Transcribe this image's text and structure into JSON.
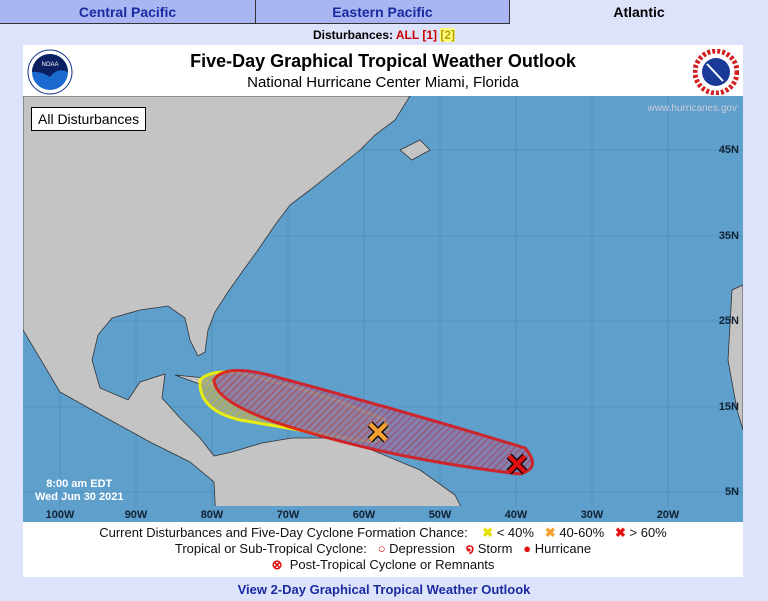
{
  "tabs": [
    {
      "label": "Central Pacific"
    },
    {
      "label": "Eastern Pacific"
    },
    {
      "label": "Atlantic",
      "active": true
    }
  ],
  "disturbances": {
    "label": "Disturbances:",
    "all": "ALL",
    "d1": "[1]",
    "d2": "[2]"
  },
  "header": {
    "title": "Five-Day Graphical Tropical Weather Outlook",
    "subtitle": "National Hurricane Center  Miami, Florida",
    "left_logo": "NOAA",
    "right_logo": "NATIONAL WEATHER SERVICE"
  },
  "map": {
    "filter_label": "All Disturbances",
    "watermark": "www.hurricanes.gov",
    "time": "8:00 am EDT",
    "date": "Wed Jun 30 2021",
    "lon_labels": [
      "100W",
      "90W",
      "80W",
      "70W",
      "60W",
      "50W",
      "40W",
      "30W",
      "20W"
    ],
    "lat_labels": [
      "45N",
      "35N",
      "25N",
      "15N",
      "5N"
    ],
    "colors": {
      "ocean": "#5e9fcc",
      "land": "#c4c4c4",
      "low": "#f5f500",
      "medium": "#f5a030",
      "high": "#e01010"
    }
  },
  "legend": {
    "row1_label": "Current Disturbances and Five-Day Cyclone Formation Chance:",
    "low": "< 40%",
    "medium": "40-60%",
    "high": "> 60%",
    "row2_label": "Tropical or Sub-Tropical Cyclone:",
    "depression": "Depression",
    "storm": "Storm",
    "hurricane": "Hurricane",
    "row3_label": "Post-Tropical Cyclone or Remnants"
  },
  "link": "View 2-Day Graphical Tropical Weather Outlook"
}
